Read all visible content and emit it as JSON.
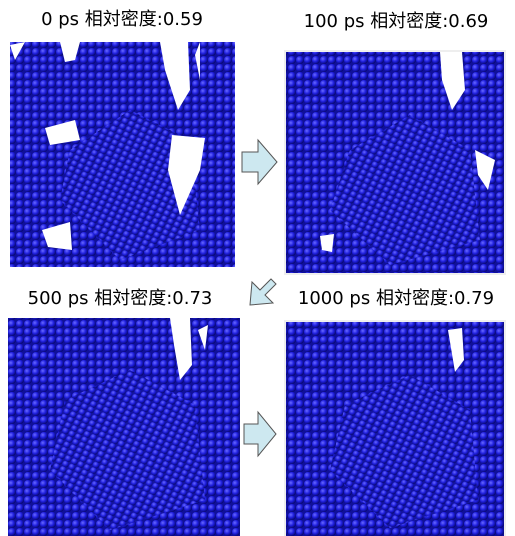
{
  "panels": [
    {
      "label": "0 ps 相対密度:0.59"
    },
    {
      "label": "100 ps 相対密度:0.69"
    },
    {
      "label": "500 ps 相対密度:0.73"
    },
    {
      "label": "1000 ps 相対密度:0.79"
    }
  ]
}
